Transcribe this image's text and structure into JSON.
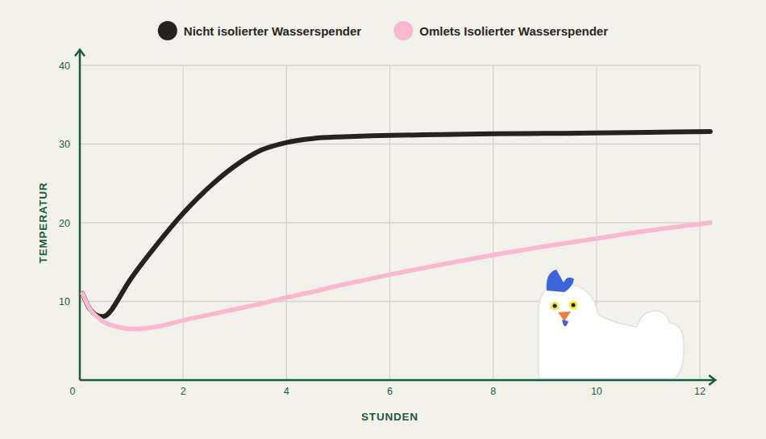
{
  "chart_data": {
    "type": "line",
    "x_label": "STUNDEN",
    "y_label": "TEMPERATUR",
    "x": [
      0.05,
      0.2,
      0.4,
      0.6,
      1,
      1.5,
      2,
      2.5,
      3,
      3.5,
      4,
      4.5,
      5,
      6,
      7,
      8,
      9,
      10,
      11,
      12.2
    ],
    "series": [
      {
        "name": "Nicht isolierter Wasserspender",
        "color": "#262220",
        "values": [
          11.0,
          9.0,
          8.1,
          8.8,
          13.0,
          17.3,
          21.2,
          24.5,
          27.2,
          29.2,
          30.2,
          30.7,
          30.9,
          31.1,
          31.2,
          31.3,
          31.35,
          31.4,
          31.5,
          31.6
        ]
      },
      {
        "name": "Omlets Isolierter Wasserspender",
        "color": "#f8b9d0",
        "values": [
          11.0,
          9.0,
          7.7,
          7.0,
          6.5,
          6.8,
          7.6,
          8.3,
          9.0,
          9.7,
          10.5,
          11.2,
          12.0,
          13.4,
          14.7,
          15.9,
          17.0,
          18.0,
          19.0,
          20.0
        ]
      }
    ],
    "xlim": [
      0,
      12.3
    ],
    "ylim": [
      0,
      42
    ],
    "xticks": [
      0,
      2,
      4,
      6,
      8,
      10,
      12
    ],
    "yticks": [
      10,
      20,
      30,
      40
    ],
    "grid": true,
    "legend": "top"
  }
}
